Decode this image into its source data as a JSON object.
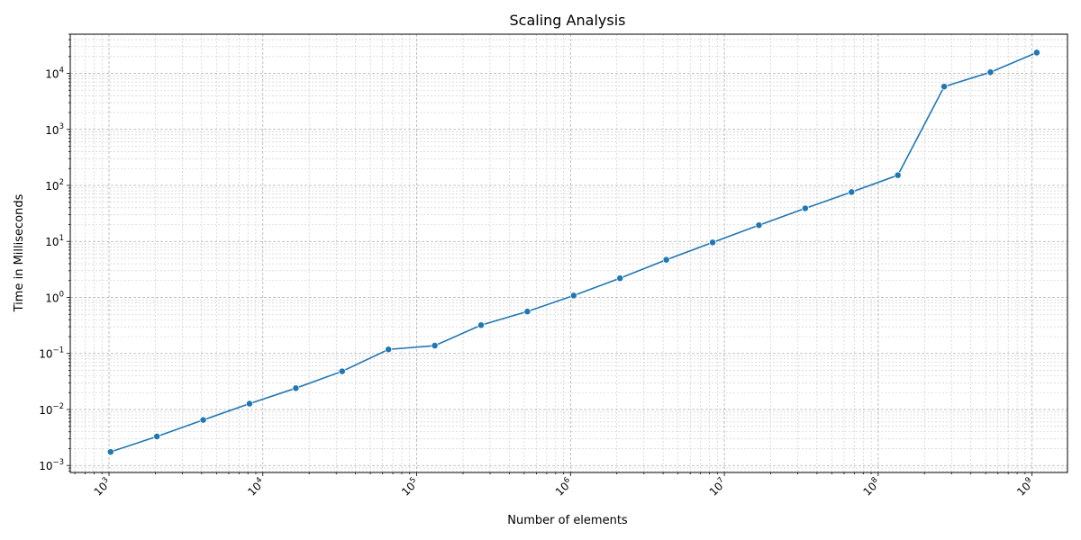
{
  "chart_data": {
    "type": "line",
    "title": "Scaling Analysis",
    "xlabel": "Number of elements",
    "ylabel": "Time in Milliseconds",
    "xscale": "log",
    "yscale": "log",
    "xlim": [
      560,
      1700000000
    ],
    "ylim": [
      0.00075,
      50000
    ],
    "grid": true,
    "xticks": [
      {
        "value": 1000,
        "base": "10",
        "exp": "3"
      },
      {
        "value": 10000,
        "base": "10",
        "exp": "4"
      },
      {
        "value": 100000,
        "base": "10",
        "exp": "5"
      },
      {
        "value": 1000000,
        "base": "10",
        "exp": "6"
      },
      {
        "value": 10000000,
        "base": "10",
        "exp": "7"
      },
      {
        "value": 100000000,
        "base": "10",
        "exp": "8"
      },
      {
        "value": 1000000000,
        "base": "10",
        "exp": "9"
      }
    ],
    "yticks": [
      {
        "value": 0.001,
        "base": "10",
        "exp": "−3"
      },
      {
        "value": 0.01,
        "base": "10",
        "exp": "−2"
      },
      {
        "value": 0.1,
        "base": "10",
        "exp": "−1"
      },
      {
        "value": 1,
        "base": "10",
        "exp": "0"
      },
      {
        "value": 10,
        "base": "10",
        "exp": "1"
      },
      {
        "value": 100,
        "base": "10",
        "exp": "2"
      },
      {
        "value": 1000,
        "base": "10",
        "exp": "3"
      },
      {
        "value": 10000,
        "base": "10",
        "exp": "4"
      }
    ],
    "series": [
      {
        "color": "#1f77b4",
        "x": [
          1024,
          2048,
          4096,
          8192,
          16384,
          32768,
          65536,
          131072,
          262144,
          524288,
          1048576,
          2097152,
          4194304,
          8388608,
          16777216,
          33554432,
          67108864,
          134217728,
          268435456,
          536870912,
          1073741824
        ],
        "y": [
          0.00175,
          0.0033,
          0.0065,
          0.0127,
          0.024,
          0.048,
          0.118,
          0.138,
          0.32,
          0.56,
          1.08,
          2.2,
          4.7,
          9.6,
          19.5,
          39,
          76,
          152,
          5800,
          10500,
          23500
        ]
      }
    ]
  }
}
